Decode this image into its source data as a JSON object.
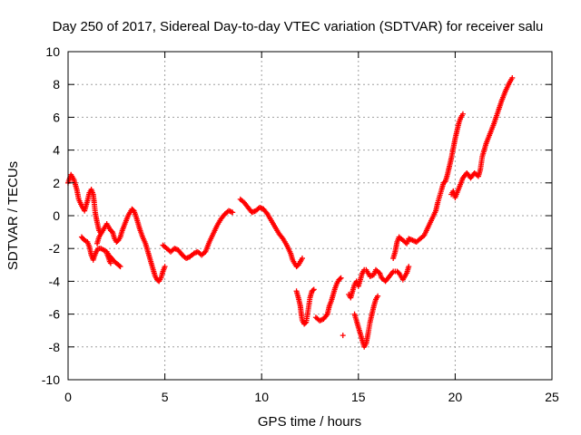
{
  "chart_data": {
    "type": "scatter",
    "title": "Day 250 of 2017, Sidereal Day-to-day VTEC variation (SDTVAR) for receiver salu",
    "xlabel": "GPS time / hours",
    "ylabel": "SDTVAR / TECUs",
    "xlim": [
      0,
      25
    ],
    "ylim": [
      -10,
      10
    ],
    "xticks": [
      "0",
      "5",
      "10",
      "15",
      "20",
      "25"
    ],
    "yticks": [
      "-10",
      "-8",
      "-6",
      "-4",
      "-2",
      "0",
      "2",
      "4",
      "6",
      "8",
      "10"
    ],
    "grid": true,
    "marker": "+",
    "colors": {
      "series": "#ff0000",
      "grid": "#a0a0a0",
      "axes": "#000000"
    },
    "segments": [
      [
        [
          0.0,
          2.0
        ],
        [
          0.15,
          2.5
        ],
        [
          0.3,
          2.2
        ],
        [
          0.45,
          1.6
        ],
        [
          0.55,
          1.0
        ],
        [
          0.7,
          0.6
        ],
        [
          0.85,
          0.3
        ],
        [
          1.0,
          0.9
        ],
        [
          1.1,
          1.4
        ],
        [
          1.2,
          1.6
        ],
        [
          1.3,
          1.3
        ],
        [
          1.35,
          0.8
        ],
        [
          1.4,
          0.2
        ],
        [
          1.5,
          -0.4
        ],
        [
          1.6,
          -0.9
        ],
        [
          1.7,
          -1.1
        ]
      ],
      [
        [
          0.7,
          -1.3
        ],
        [
          0.85,
          -1.5
        ],
        [
          1.0,
          -1.6
        ],
        [
          1.1,
          -1.9
        ],
        [
          1.2,
          -2.4
        ],
        [
          1.3,
          -2.7
        ],
        [
          1.35,
          -2.5
        ],
        [
          1.45,
          -2.2
        ],
        [
          1.55,
          -2.0
        ],
        [
          1.7,
          -2.0
        ],
        [
          1.85,
          -2.1
        ],
        [
          2.0,
          -2.2
        ],
        [
          2.1,
          -2.4
        ],
        [
          2.25,
          -2.6
        ],
        [
          2.4,
          -2.8
        ],
        [
          2.6,
          -3.0
        ],
        [
          2.7,
          -3.1
        ]
      ],
      [
        [
          1.5,
          -1.7
        ],
        [
          1.6,
          -1.3
        ],
        [
          1.7,
          -1.1
        ],
        [
          1.8,
          -0.9
        ],
        [
          1.9,
          -0.7
        ],
        [
          2.0,
          -0.5
        ],
        [
          2.1,
          -0.7
        ],
        [
          2.2,
          -0.9
        ],
        [
          2.3,
          -1.0
        ],
        [
          2.4,
          -1.4
        ],
        [
          2.5,
          -1.6
        ],
        [
          2.6,
          -1.5
        ],
        [
          2.7,
          -1.3
        ],
        [
          2.8,
          -0.9
        ],
        [
          2.9,
          -0.6
        ],
        [
          3.0,
          -0.3
        ],
        [
          3.1,
          0.0
        ],
        [
          3.2,
          0.2
        ],
        [
          3.3,
          0.4
        ],
        [
          3.4,
          0.3
        ],
        [
          3.5,
          0.0
        ],
        [
          3.6,
          -0.4
        ],
        [
          3.7,
          -0.8
        ],
        [
          3.85,
          -1.3
        ],
        [
          4.0,
          -1.7
        ],
        [
          4.1,
          -2.1
        ],
        [
          4.2,
          -2.5
        ],
        [
          4.3,
          -2.9
        ],
        [
          4.4,
          -3.3
        ],
        [
          4.5,
          -3.7
        ],
        [
          4.6,
          -3.9
        ],
        [
          4.7,
          -4.0
        ],
        [
          4.8,
          -3.8
        ],
        [
          4.9,
          -3.4
        ],
        [
          5.0,
          -3.1
        ]
      ],
      [
        [
          2.0,
          -2.3
        ],
        [
          2.1,
          -2.6
        ],
        [
          2.15,
          -2.8
        ],
        [
          2.2,
          -2.9
        ]
      ],
      [
        [
          4.9,
          -1.8
        ],
        [
          5.1,
          -2.0
        ],
        [
          5.3,
          -2.2
        ],
        [
          5.5,
          -2.0
        ],
        [
          5.7,
          -2.1
        ],
        [
          5.9,
          -2.4
        ],
        [
          6.1,
          -2.6
        ],
        [
          6.3,
          -2.5
        ],
        [
          6.5,
          -2.3
        ],
        [
          6.7,
          -2.2
        ],
        [
          6.9,
          -2.4
        ],
        [
          7.1,
          -2.2
        ],
        [
          7.3,
          -1.6
        ],
        [
          7.5,
          -1.1
        ],
        [
          7.7,
          -0.6
        ],
        [
          7.9,
          -0.2
        ],
        [
          8.1,
          0.1
        ],
        [
          8.3,
          0.3
        ],
        [
          8.5,
          0.2
        ]
      ],
      [
        [
          8.9,
          1.0
        ],
        [
          9.1,
          0.8
        ],
        [
          9.3,
          0.5
        ],
        [
          9.5,
          0.2
        ],
        [
          9.7,
          0.3
        ],
        [
          9.9,
          0.5
        ],
        [
          10.1,
          0.4
        ],
        [
          10.3,
          0.1
        ],
        [
          10.5,
          -0.3
        ],
        [
          10.7,
          -0.7
        ],
        [
          10.9,
          -1.1
        ],
        [
          11.1,
          -1.4
        ],
        [
          11.3,
          -1.8
        ],
        [
          11.5,
          -2.3
        ],
        [
          11.6,
          -2.7
        ],
        [
          11.7,
          -2.9
        ],
        [
          11.8,
          -3.1
        ],
        [
          11.9,
          -3.0
        ],
        [
          12.0,
          -2.8
        ],
        [
          12.1,
          -2.6
        ]
      ],
      [
        [
          11.8,
          -4.6
        ],
        [
          11.9,
          -5.0
        ],
        [
          12.0,
          -5.5
        ],
        [
          12.05,
          -6.0
        ],
        [
          12.1,
          -6.4
        ],
        [
          12.2,
          -6.6
        ],
        [
          12.3,
          -6.5
        ],
        [
          12.4,
          -5.8
        ],
        [
          12.5,
          -5.0
        ],
        [
          12.6,
          -4.6
        ],
        [
          12.7,
          -4.5
        ]
      ],
      [
        [
          12.8,
          -6.2
        ],
        [
          13.0,
          -6.4
        ],
        [
          13.2,
          -6.3
        ],
        [
          13.4,
          -6.0
        ],
        [
          13.5,
          -5.5
        ],
        [
          13.6,
          -5.2
        ],
        [
          13.7,
          -4.8
        ],
        [
          13.8,
          -4.4
        ],
        [
          13.9,
          -4.1
        ],
        [
          14.0,
          -3.9
        ],
        [
          14.1,
          -3.8
        ]
      ],
      [
        [
          14.2,
          -7.3
        ]
      ],
      [
        [
          14.5,
          -4.8
        ],
        [
          14.6,
          -5.0
        ],
        [
          14.7,
          -4.6
        ],
        [
          14.8,
          -4.2
        ],
        [
          14.9,
          -4.0
        ],
        [
          15.0,
          -4.3
        ],
        [
          15.1,
          -3.9
        ],
        [
          15.2,
          -3.5
        ],
        [
          15.3,
          -3.3
        ],
        [
          15.4,
          -3.3
        ],
        [
          15.5,
          -3.5
        ],
        [
          15.6,
          -3.7
        ],
        [
          15.8,
          -3.6
        ],
        [
          15.9,
          -3.3
        ],
        [
          16.1,
          -3.5
        ],
        [
          16.2,
          -3.8
        ],
        [
          16.4,
          -4.0
        ],
        [
          16.6,
          -3.7
        ],
        [
          16.8,
          -3.4
        ],
        [
          17.0,
          -3.4
        ],
        [
          17.1,
          -3.5
        ],
        [
          17.3,
          -3.9
        ],
        [
          17.5,
          -3.5
        ],
        [
          17.6,
          -3.1
        ]
      ],
      [
        [
          14.8,
          -6.0
        ],
        [
          14.9,
          -6.4
        ],
        [
          15.0,
          -6.8
        ],
        [
          15.1,
          -7.2
        ],
        [
          15.2,
          -7.6
        ],
        [
          15.3,
          -8.0
        ],
        [
          15.4,
          -7.8
        ],
        [
          15.5,
          -7.2
        ],
        [
          15.6,
          -6.5
        ],
        [
          15.7,
          -6.0
        ],
        [
          15.8,
          -5.5
        ],
        [
          15.9,
          -5.1
        ],
        [
          16.0,
          -4.9
        ]
      ],
      [
        [
          16.8,
          -2.6
        ],
        [
          16.9,
          -2.2
        ],
        [
          17.0,
          -1.6
        ],
        [
          17.1,
          -1.3
        ],
        [
          17.3,
          -1.5
        ],
        [
          17.5,
          -1.7
        ],
        [
          17.6,
          -1.4
        ],
        [
          17.8,
          -1.5
        ],
        [
          18.0,
          -1.6
        ],
        [
          18.2,
          -1.4
        ],
        [
          18.4,
          -1.2
        ],
        [
          18.6,
          -0.7
        ],
        [
          18.8,
          -0.2
        ],
        [
          19.0,
          0.3
        ],
        [
          19.1,
          0.8
        ],
        [
          19.3,
          1.6
        ],
        [
          19.4,
          2.0
        ],
        [
          19.5,
          2.1
        ],
        [
          19.6,
          2.5
        ],
        [
          19.7,
          3.0
        ],
        [
          19.8,
          3.5
        ],
        [
          19.9,
          4.1
        ],
        [
          20.0,
          4.7
        ],
        [
          20.1,
          5.2
        ],
        [
          20.2,
          5.7
        ],
        [
          20.3,
          6.0
        ],
        [
          20.4,
          6.2
        ]
      ],
      [
        [
          19.8,
          1.3
        ],
        [
          19.9,
          1.5
        ],
        [
          20.0,
          1.1
        ],
        [
          20.2,
          1.7
        ],
        [
          20.4,
          2.3
        ],
        [
          20.6,
          2.6
        ],
        [
          20.8,
          2.3
        ],
        [
          21.0,
          2.6
        ],
        [
          21.2,
          2.4
        ],
        [
          21.3,
          2.8
        ],
        [
          21.4,
          3.6
        ],
        [
          21.5,
          4.0
        ],
        [
          21.6,
          4.4
        ],
        [
          21.8,
          5.0
        ],
        [
          22.0,
          5.6
        ],
        [
          22.2,
          6.3
        ],
        [
          22.4,
          7.0
        ],
        [
          22.6,
          7.6
        ],
        [
          22.8,
          8.1
        ],
        [
          22.95,
          8.4
        ]
      ]
    ]
  }
}
